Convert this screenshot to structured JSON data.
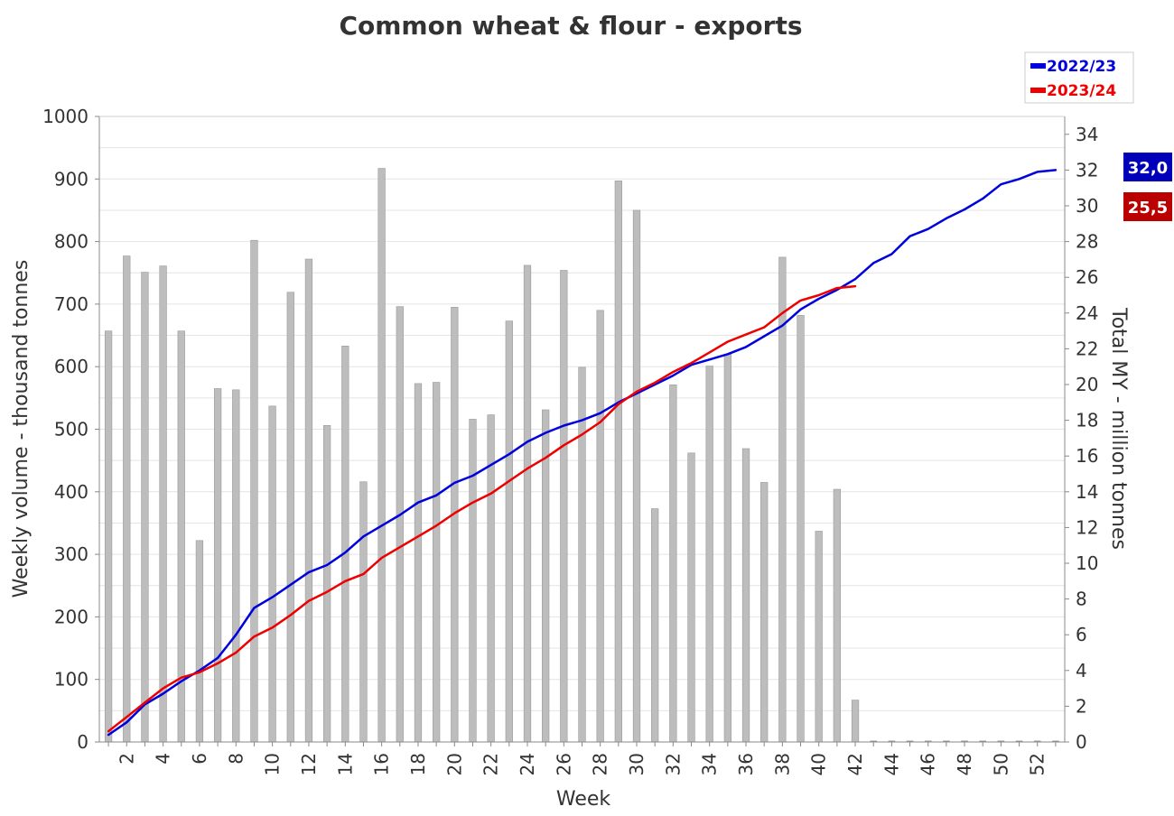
{
  "chart_data": {
    "type": "bar+line",
    "title": "Common wheat & flour - exports",
    "xlabel": "Week",
    "ylabel_left": "Weekly volume - thousand tonnes",
    "ylabel_right": "Total MY - million tonnes",
    "left_ylim": [
      0,
      1000
    ],
    "right_ylim": [
      0,
      35
    ],
    "left_ticks": [
      0,
      100,
      200,
      300,
      400,
      500,
      600,
      700,
      800,
      900,
      1000
    ],
    "right_ticks": [
      0,
      2,
      4,
      6,
      8,
      10,
      12,
      14,
      16,
      18,
      20,
      22,
      24,
      26,
      28,
      30,
      32,
      34
    ],
    "x_ticks": [
      2,
      4,
      6,
      8,
      10,
      12,
      14,
      16,
      18,
      20,
      22,
      24,
      26,
      28,
      30,
      32,
      34,
      36,
      38,
      40,
      42,
      44,
      46,
      48,
      50,
      52
    ],
    "weeks": [
      1,
      2,
      3,
      4,
      5,
      6,
      7,
      8,
      9,
      10,
      11,
      12,
      13,
      14,
      15,
      16,
      17,
      18,
      19,
      20,
      21,
      22,
      23,
      24,
      25,
      26,
      27,
      28,
      29,
      30,
      31,
      32,
      33,
      34,
      35,
      36,
      37,
      38,
      39,
      40,
      41,
      42,
      43,
      44,
      45,
      46,
      47,
      48,
      49,
      50,
      51,
      52,
      53
    ],
    "grid": true,
    "legend_position": "top-right",
    "bar_series": {
      "name": "",
      "axis": "left",
      "color": "#bdbdbd",
      "values": [
        657,
        777,
        751,
        761,
        657,
        322,
        565,
        563,
        802,
        537,
        719,
        772,
        506,
        633,
        416,
        917,
        696,
        573,
        575,
        695,
        516,
        523,
        673,
        762,
        531,
        754,
        599,
        690,
        897,
        850,
        373,
        571,
        462,
        601,
        620,
        469,
        415,
        775,
        682,
        337,
        404,
        67,
        0,
        0,
        0,
        0,
        0,
        0,
        0,
        0,
        0,
        0,
        0
      ]
    },
    "series": [
      {
        "name": "2022/23",
        "axis": "right",
        "color": "#0000dd",
        "values": [
          0.4,
          1.1,
          2.1,
          2.7,
          3.4,
          4.0,
          4.7,
          6.0,
          7.5,
          8.1,
          8.8,
          9.5,
          9.9,
          10.6,
          11.5,
          12.1,
          12.7,
          13.4,
          13.8,
          14.5,
          14.9,
          15.5,
          16.1,
          16.8,
          17.3,
          17.7,
          18.0,
          18.4,
          19.0,
          19.5,
          20.0,
          20.5,
          21.1,
          21.4,
          21.7,
          22.1,
          22.7,
          23.3,
          24.2,
          24.8,
          25.3,
          25.9,
          26.8,
          27.3,
          28.3,
          28.7,
          29.3,
          29.8,
          30.4,
          31.2,
          31.5,
          31.9,
          32.0
        ]
      },
      {
        "name": "2023/24",
        "axis": "right",
        "color": "#ee0000",
        "values": [
          0.6,
          1.4,
          2.2,
          3.0,
          3.6,
          3.9,
          4.4,
          5.0,
          5.9,
          6.4,
          7.1,
          7.9,
          8.4,
          9.0,
          9.4,
          10.3,
          10.9,
          11.5,
          12.1,
          12.8,
          13.4,
          13.9,
          14.6,
          15.3,
          15.9,
          16.6,
          17.2,
          17.9,
          18.9,
          19.6,
          20.1,
          20.7,
          21.2,
          21.8,
          22.4,
          22.8,
          23.2,
          24.0,
          24.7,
          25.0,
          25.4,
          25.5
        ]
      }
    ],
    "callouts": [
      {
        "text": "32,0",
        "value": 32.0,
        "color": "#0000bb"
      },
      {
        "text": "25,5",
        "value": 25.5,
        "color": "#bb0000"
      }
    ]
  }
}
